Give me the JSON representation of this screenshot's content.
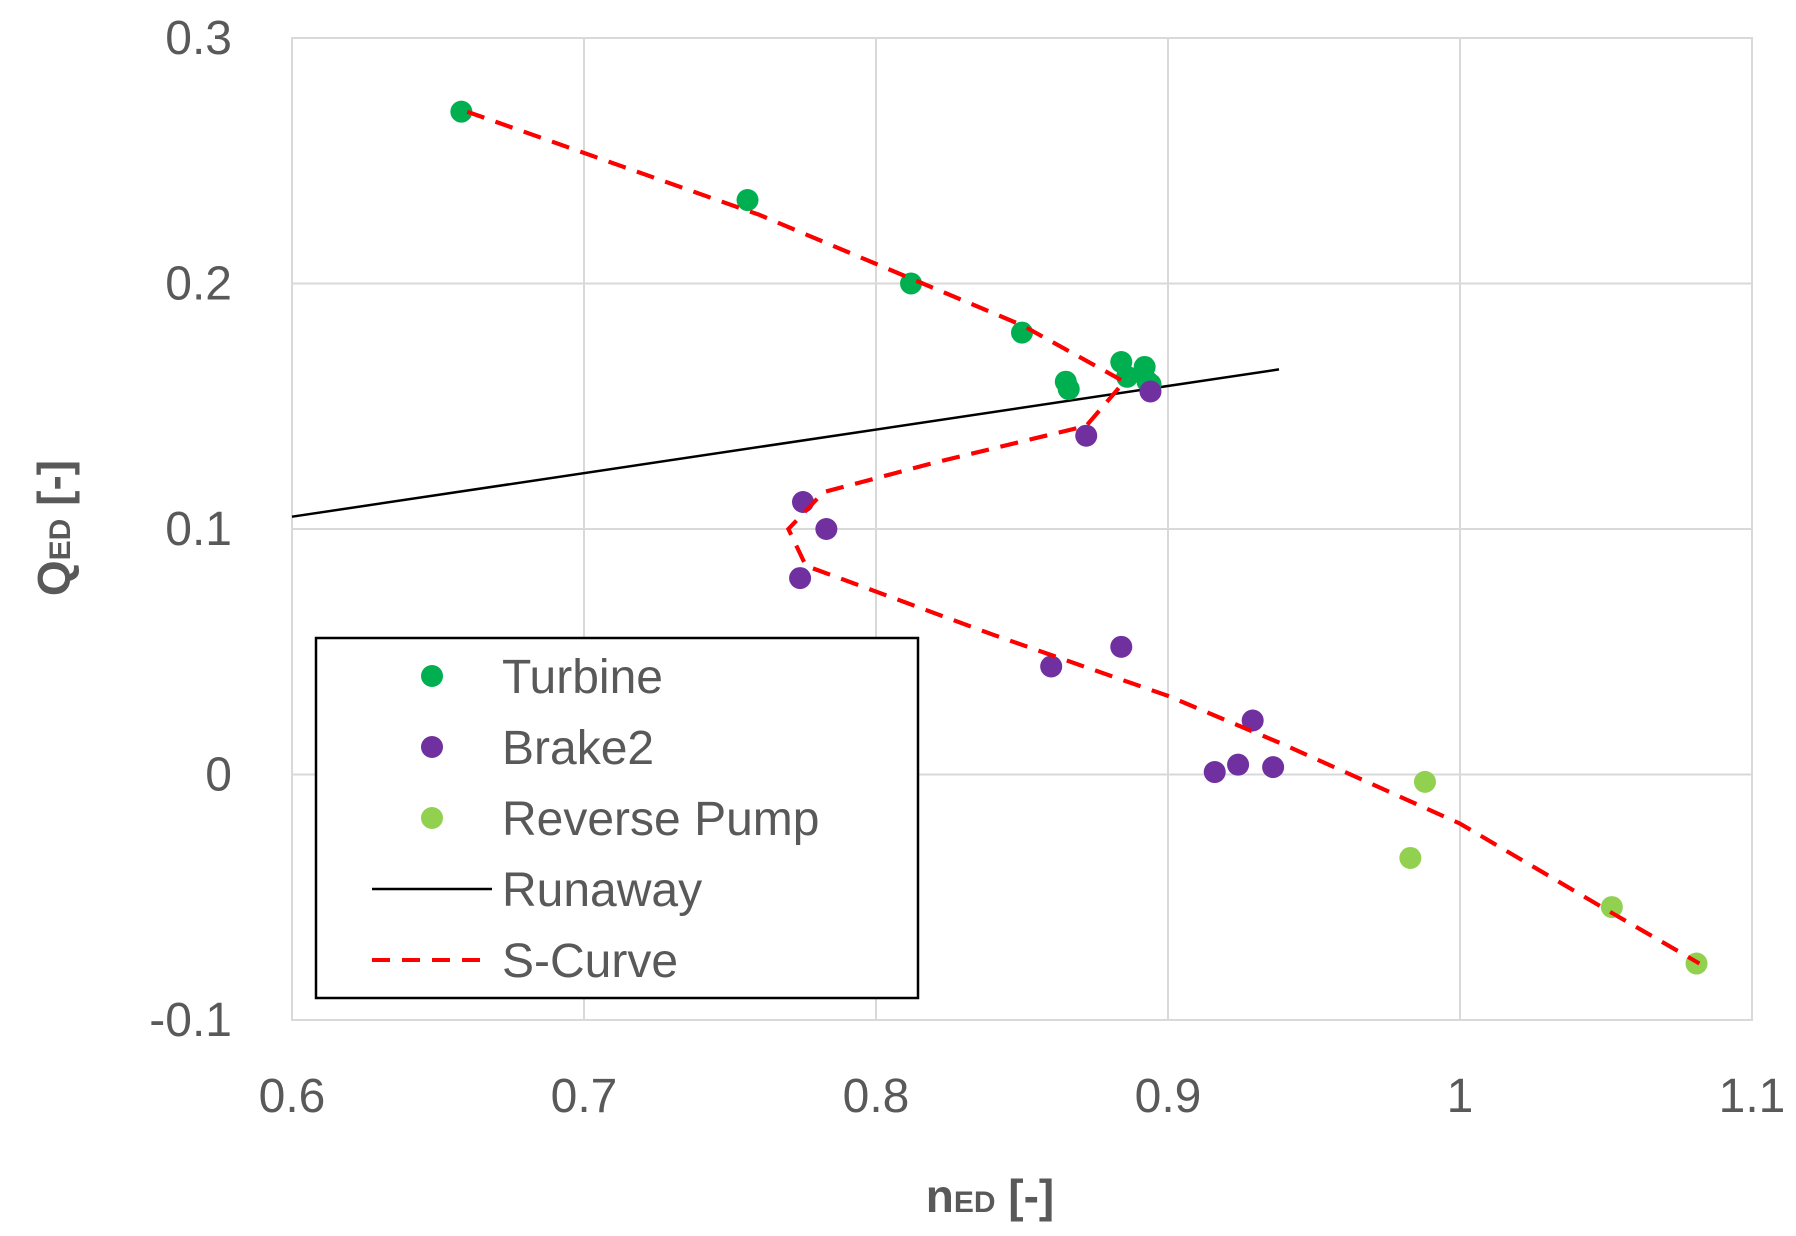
{
  "chart_data": {
    "type": "scatter",
    "title": "",
    "xlabel": {
      "main": "n",
      "sub": "ED",
      "unit": " [-]"
    },
    "ylabel": {
      "main": "Q",
      "sub": "ED",
      "unit": " [-]"
    },
    "xlim": [
      0.6,
      1.1
    ],
    "ylim": [
      -0.1,
      0.3
    ],
    "x_ticks": [
      {
        "value": 0.6,
        "label": "0.6"
      },
      {
        "value": 0.7,
        "label": "0.7"
      },
      {
        "value": 0.8,
        "label": "0.8"
      },
      {
        "value": 0.9,
        "label": "0.9"
      },
      {
        "value": 1.0,
        "label": "1"
      },
      {
        "value": 1.1,
        "label": "1.1"
      }
    ],
    "y_ticks": [
      {
        "value": -0.1,
        "label": "-0.1"
      },
      {
        "value": 0.0,
        "label": "0"
      },
      {
        "value": 0.1,
        "label": "0.1"
      },
      {
        "value": 0.2,
        "label": "0.2"
      },
      {
        "value": 0.3,
        "label": "0.3"
      }
    ],
    "grid": true,
    "legend_position": "bottom-left",
    "series": [
      {
        "name": "Turbine",
        "kind": "scatter",
        "color": "#00b050",
        "points": [
          [
            0.658,
            0.27
          ],
          [
            0.756,
            0.234
          ],
          [
            0.812,
            0.2
          ],
          [
            0.85,
            0.18
          ],
          [
            0.865,
            0.16
          ],
          [
            0.866,
            0.157
          ],
          [
            0.884,
            0.168
          ],
          [
            0.886,
            0.162
          ],
          [
            0.892,
            0.166
          ],
          [
            0.893,
            0.16
          ],
          [
            0.894,
            0.159
          ]
        ]
      },
      {
        "name": "Brake2",
        "kind": "scatter",
        "color": "#7030a0",
        "points": [
          [
            0.894,
            0.156
          ],
          [
            0.872,
            0.138
          ],
          [
            0.775,
            0.111
          ],
          [
            0.783,
            0.1
          ],
          [
            0.774,
            0.08
          ],
          [
            0.86,
            0.044
          ],
          [
            0.884,
            0.052
          ],
          [
            0.929,
            0.022
          ],
          [
            0.916,
            0.001
          ],
          [
            0.924,
            0.004
          ],
          [
            0.936,
            0.003
          ]
        ]
      },
      {
        "name": "Reverse Pump",
        "kind": "scatter",
        "color": "#92d050",
        "points": [
          [
            0.988,
            -0.003
          ],
          [
            0.983,
            -0.034
          ],
          [
            1.052,
            -0.054
          ],
          [
            1.081,
            -0.077
          ]
        ]
      },
      {
        "name": "Runaway",
        "kind": "line",
        "color": "#000000",
        "style": "solid",
        "points": [
          [
            0.6,
            0.105
          ],
          [
            0.938,
            0.165
          ]
        ]
      },
      {
        "name": "S-Curve",
        "kind": "line",
        "color": "#ff0000",
        "style": "dashed",
        "points": [
          [
            0.66,
            0.27
          ],
          [
            0.76,
            0.228
          ],
          [
            0.85,
            0.183
          ],
          [
            0.885,
            0.16
          ],
          [
            0.872,
            0.142
          ],
          [
            0.82,
            0.127
          ],
          [
            0.782,
            0.115
          ],
          [
            0.77,
            0.1
          ],
          [
            0.776,
            0.085
          ],
          [
            0.84,
            0.057
          ],
          [
            0.9,
            0.032
          ],
          [
            0.94,
            0.012
          ],
          [
            1.0,
            -0.02
          ],
          [
            1.05,
            -0.055
          ],
          [
            1.082,
            -0.077
          ]
        ]
      }
    ]
  }
}
